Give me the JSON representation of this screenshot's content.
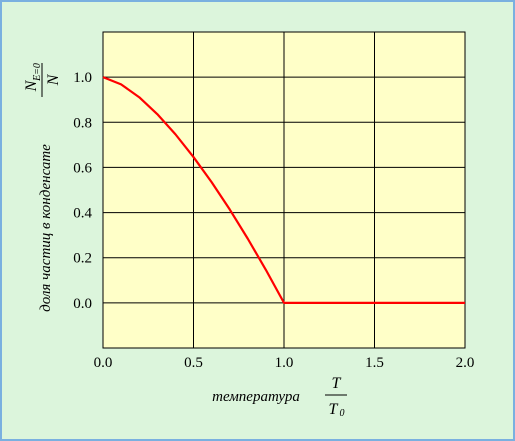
{
  "chart_data": {
    "type": "line",
    "title": "",
    "xlabel": "температура",
    "ylabel": "доля частиц в конденсате",
    "x_fraction": {
      "numerator": "T",
      "denominator": "T",
      "denominator_sub": "0"
    },
    "y_fraction": {
      "numerator": "N",
      "numerator_sub": "E=0",
      "denominator": "N"
    },
    "xlim": [
      0.0,
      2.0
    ],
    "ylim": [
      -0.2,
      1.2
    ],
    "x_ticks": [
      "0.0",
      "0.5",
      "1.0",
      "1.5",
      "2.0"
    ],
    "y_ticks": [
      "0.0",
      "0.2",
      "0.4",
      "0.6",
      "0.8",
      "1.0"
    ],
    "grid": true,
    "series": [
      {
        "color": "#ff0000",
        "x": [
          0.0,
          0.1,
          0.2,
          0.3,
          0.4,
          0.5,
          0.6,
          0.7,
          0.8,
          0.9,
          1.0,
          1.1,
          1.2,
          1.3,
          1.4,
          1.5,
          1.6,
          1.7,
          1.8,
          1.9,
          2.0
        ],
        "y": [
          1.0,
          0.968,
          0.911,
          0.836,
          0.747,
          0.646,
          0.535,
          0.414,
          0.284,
          0.146,
          0.0,
          0.0,
          0.0,
          0.0,
          0.0,
          0.0,
          0.0,
          0.0,
          0.0,
          0.0,
          0.0
        ]
      }
    ],
    "plot_background": "#ffffc8",
    "page_background": "#dcf5dc"
  }
}
